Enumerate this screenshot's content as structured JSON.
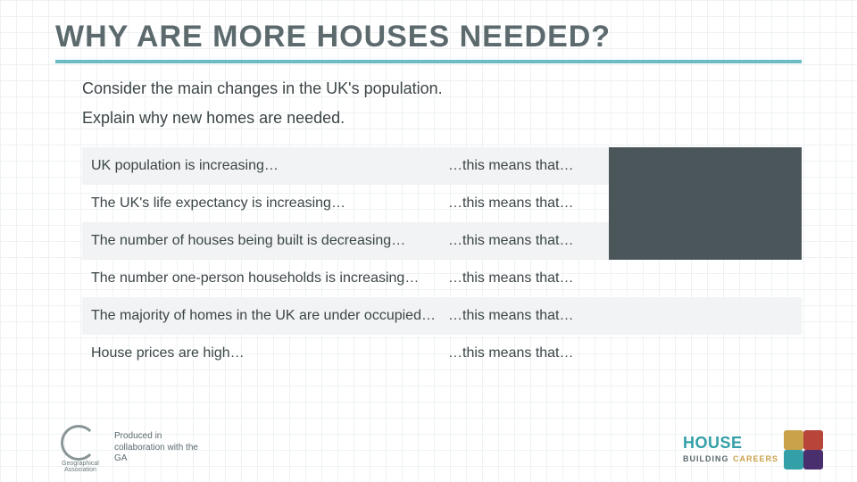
{
  "colors": {
    "title": "#5c6a6e",
    "divider": "#6bbcc4",
    "body_text": "#3c4547",
    "row_alt_bg": "#f1f3f4",
    "row_dark_bg": "#4a565a",
    "credit_text": "#5c6a6e",
    "hbc_house": "#33a0a8",
    "hbc_building": "#5c6a6e",
    "hbc_careers": "#caa24a",
    "puzzle": [
      "#caa24a",
      "#b8453a",
      "#33a0a8",
      "#4a2f6f"
    ]
  },
  "typography": {
    "title_size": 34,
    "intro_size": 18,
    "cell_size": 16,
    "credit_size": 10
  },
  "title": "WHY ARE MORE HOUSES NEEDED?",
  "intro": [
    "Consider the main changes in the UK's population.",
    "Explain why new homes are needed."
  ],
  "table": {
    "columns": [
      "statement",
      "prompt",
      "answer"
    ],
    "rows": [
      {
        "statement": "UK population is increasing…",
        "prompt": "…this means that…",
        "answer": "",
        "alt": true,
        "dark": true
      },
      {
        "statement": "The UK's life expectancy is increasing…",
        "prompt": "…this means that…",
        "answer": "",
        "alt": false,
        "dark": true
      },
      {
        "statement": "The number of houses being built is decreasing…",
        "prompt": "…this means that…",
        "answer": "",
        "alt": true,
        "dark": true
      },
      {
        "statement": "The number one-person households is increasing…",
        "prompt": "…this means that…",
        "answer": "",
        "alt": false,
        "dark": false
      },
      {
        "statement": "The majority of homes in the UK are under occupied…",
        "prompt": "…this means that…",
        "answer": "",
        "alt": true,
        "dark": false
      },
      {
        "statement": "House prices are high…",
        "prompt": "…this means that…",
        "answer": "",
        "alt": false,
        "dark": false
      }
    ]
  },
  "footer": {
    "logo_label": "Geographical Association",
    "credit": "Produced in collaboration with the GA"
  },
  "hbc": {
    "l1": "HOUSE",
    "l2a": "BUILDING",
    "l2b": "CAREERS"
  }
}
